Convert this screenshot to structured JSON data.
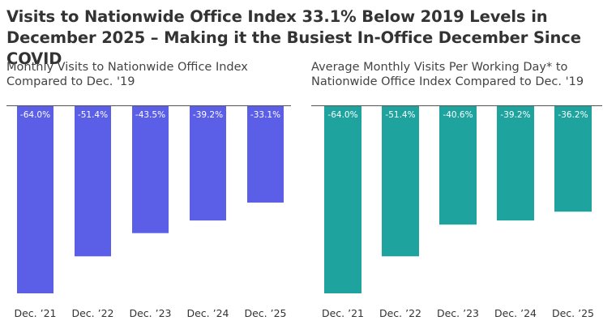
{
  "title": "Visits to Nationwide Office Index 33.1% Below 2019 Levels in December 2025 – Making it the Busiest In-Office December Since COVID",
  "colors": {
    "left_series": "#5b5fe8",
    "right_series": "#1fa39f",
    "baseline": "#555555"
  },
  "chart_data": [
    {
      "type": "bar",
      "title": "Monthly Visits to Nationwide Office Index Compared to Dec. '19",
      "categories": [
        "Dec. ’21",
        "Dec. ’22",
        "Dec. ’23",
        "Dec. ’24",
        "Dec. ’25"
      ],
      "values": [
        -64.0,
        -51.4,
        -43.5,
        -39.2,
        -33.1
      ],
      "value_labels": [
        "-64.0%",
        "-51.4%",
        "-43.5%",
        "-39.2%",
        "-33.1%"
      ],
      "ylim": [
        -64.0,
        0
      ],
      "grid": false,
      "legend": "none"
    },
    {
      "type": "bar",
      "title": "Average Monthly Visits Per Working Day* to Nationwide Office Index Compared to Dec. '19",
      "categories": [
        "Dec. ’21",
        "Dec. ’22",
        "Dec. ’23",
        "Dec. ’24",
        "Dec. ’25"
      ],
      "values": [
        -64.0,
        -51.4,
        -40.6,
        -39.2,
        -36.2
      ],
      "value_labels": [
        "-64.0%",
        "-51.4%",
        "-40.6%",
        "-39.2%",
        "-36.2%"
      ],
      "ylim": [
        -64.0,
        0
      ],
      "grid": false,
      "legend": "none"
    }
  ]
}
